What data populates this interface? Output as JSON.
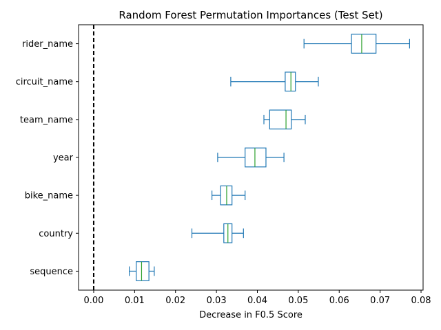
{
  "chart_data": {
    "type": "box",
    "orientation": "horizontal",
    "title": "Random Forest Permutation Importances (Test Set)",
    "xlabel": "Decrease in F0.5 Score",
    "ylabel": "",
    "xlim": [
      -0.0037,
      0.0805
    ],
    "xticks": [
      0.0,
      0.01,
      0.02,
      0.03,
      0.04,
      0.05,
      0.06,
      0.07,
      0.08
    ],
    "xtick_labels": [
      "0.00",
      "0.01",
      "0.02",
      "0.03",
      "0.04",
      "0.05",
      "0.06",
      "0.07",
      "0.08"
    ],
    "reference_line": {
      "x": 0.0,
      "style": "dashed",
      "color": "#000000"
    },
    "grid": false,
    "colors": {
      "box": "#1f77b4",
      "median": "#2ca02c"
    },
    "boxes": [
      {
        "label": "rider_name",
        "whisker_low": 0.0514,
        "q1": 0.063,
        "median": 0.0655,
        "q3": 0.069,
        "whisker_high": 0.0772
      },
      {
        "label": "circuit_name",
        "whisker_low": 0.0335,
        "q1": 0.0468,
        "median": 0.0482,
        "q3": 0.0493,
        "whisker_high": 0.0549
      },
      {
        "label": "team_name",
        "whisker_low": 0.0416,
        "q1": 0.043,
        "median": 0.047,
        "q3": 0.0483,
        "whisker_high": 0.0517
      },
      {
        "label": "year",
        "whisker_low": 0.0303,
        "q1": 0.037,
        "median": 0.0394,
        "q3": 0.0421,
        "whisker_high": 0.0465
      },
      {
        "label": "bike_name",
        "whisker_low": 0.0289,
        "q1": 0.031,
        "median": 0.0325,
        "q3": 0.0338,
        "whisker_high": 0.037
      },
      {
        "label": "country",
        "whisker_low": 0.024,
        "q1": 0.0318,
        "median": 0.0328,
        "q3": 0.0338,
        "whisker_high": 0.0366
      },
      {
        "label": "sequence",
        "whisker_low": 0.0087,
        "q1": 0.0104,
        "median": 0.0117,
        "q3": 0.0135,
        "whisker_high": 0.0148
      }
    ]
  }
}
